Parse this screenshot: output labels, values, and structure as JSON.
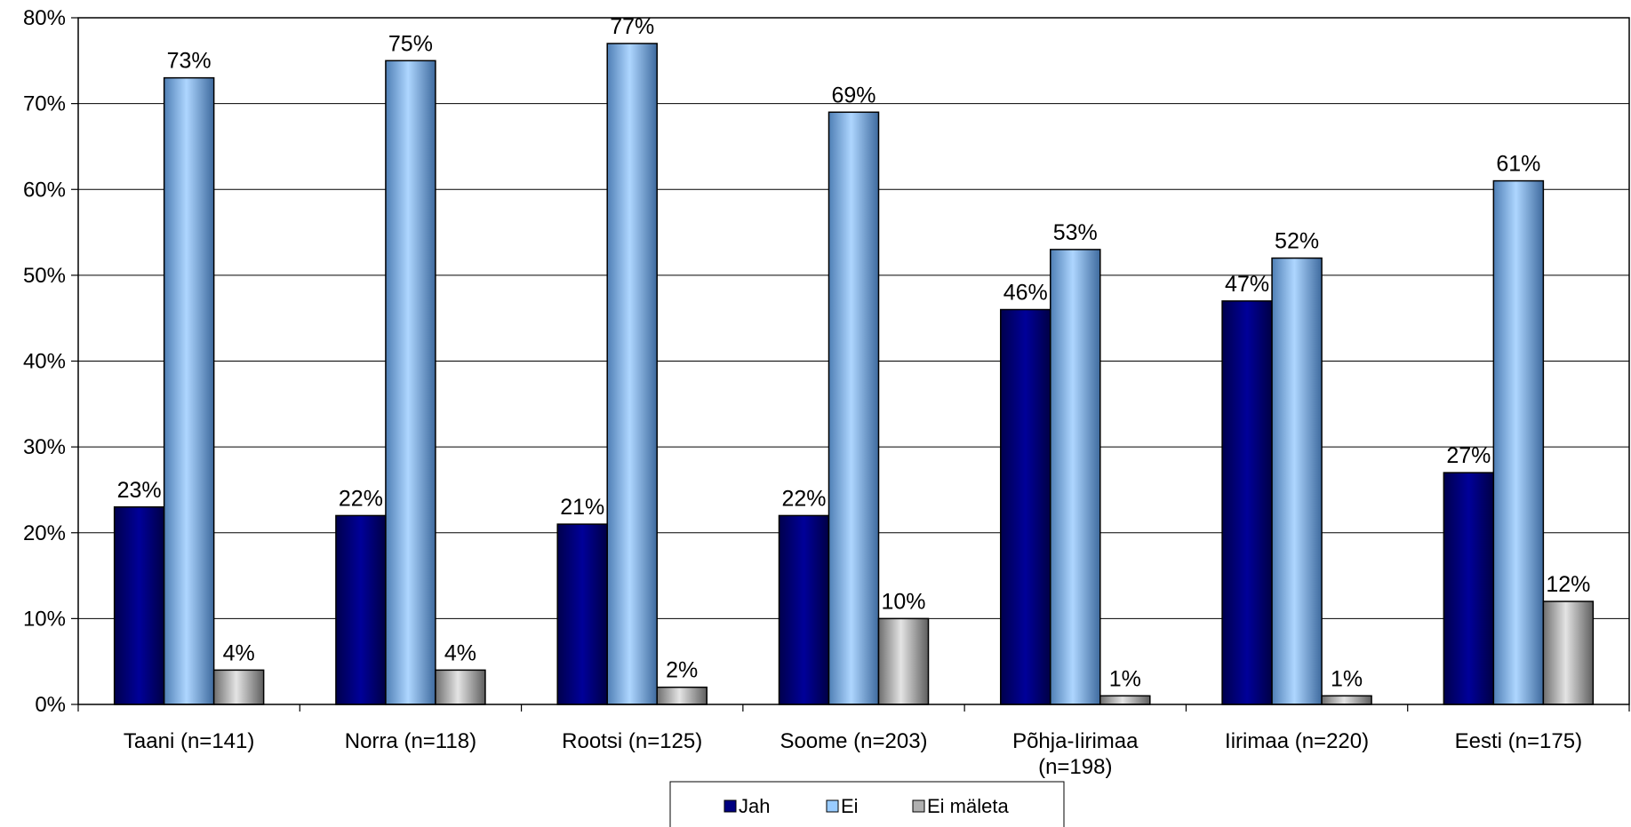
{
  "chart_data": {
    "type": "bar",
    "categories": [
      [
        "Taani (n=141)"
      ],
      [
        "Norra (n=118)"
      ],
      [
        "Rootsi (n=125)"
      ],
      [
        "Soome (n=203)"
      ],
      [
        "Põhja-Iirimaa",
        "(n=198)"
      ],
      [
        "Iirimaa (n=220)"
      ],
      [
        "Eesti (n=175)"
      ]
    ],
    "series": [
      {
        "name": "Jah",
        "color": "#000080",
        "values": [
          23,
          22,
          21,
          22,
          46,
          47,
          27
        ]
      },
      {
        "name": "Ei",
        "color": "#99ccff",
        "values": [
          73,
          75,
          77,
          69,
          53,
          52,
          61
        ]
      },
      {
        "name": "Ei mäleta",
        "color": "#b0b0b0",
        "values": [
          4,
          4,
          2,
          10,
          1,
          1,
          12
        ]
      }
    ],
    "value_suffix": "%",
    "ylim": [
      0,
      80
    ],
    "yticks": [
      0,
      10,
      20,
      30,
      40,
      50,
      60,
      70,
      80
    ],
    "ytick_labels": [
      "0%",
      "10%",
      "20%",
      "30%",
      "40%",
      "50%",
      "60%",
      "70%",
      "80%"
    ],
    "grid": true,
    "legend_position": "bottom-center",
    "title": "",
    "xlabel": "",
    "ylabel": ""
  }
}
